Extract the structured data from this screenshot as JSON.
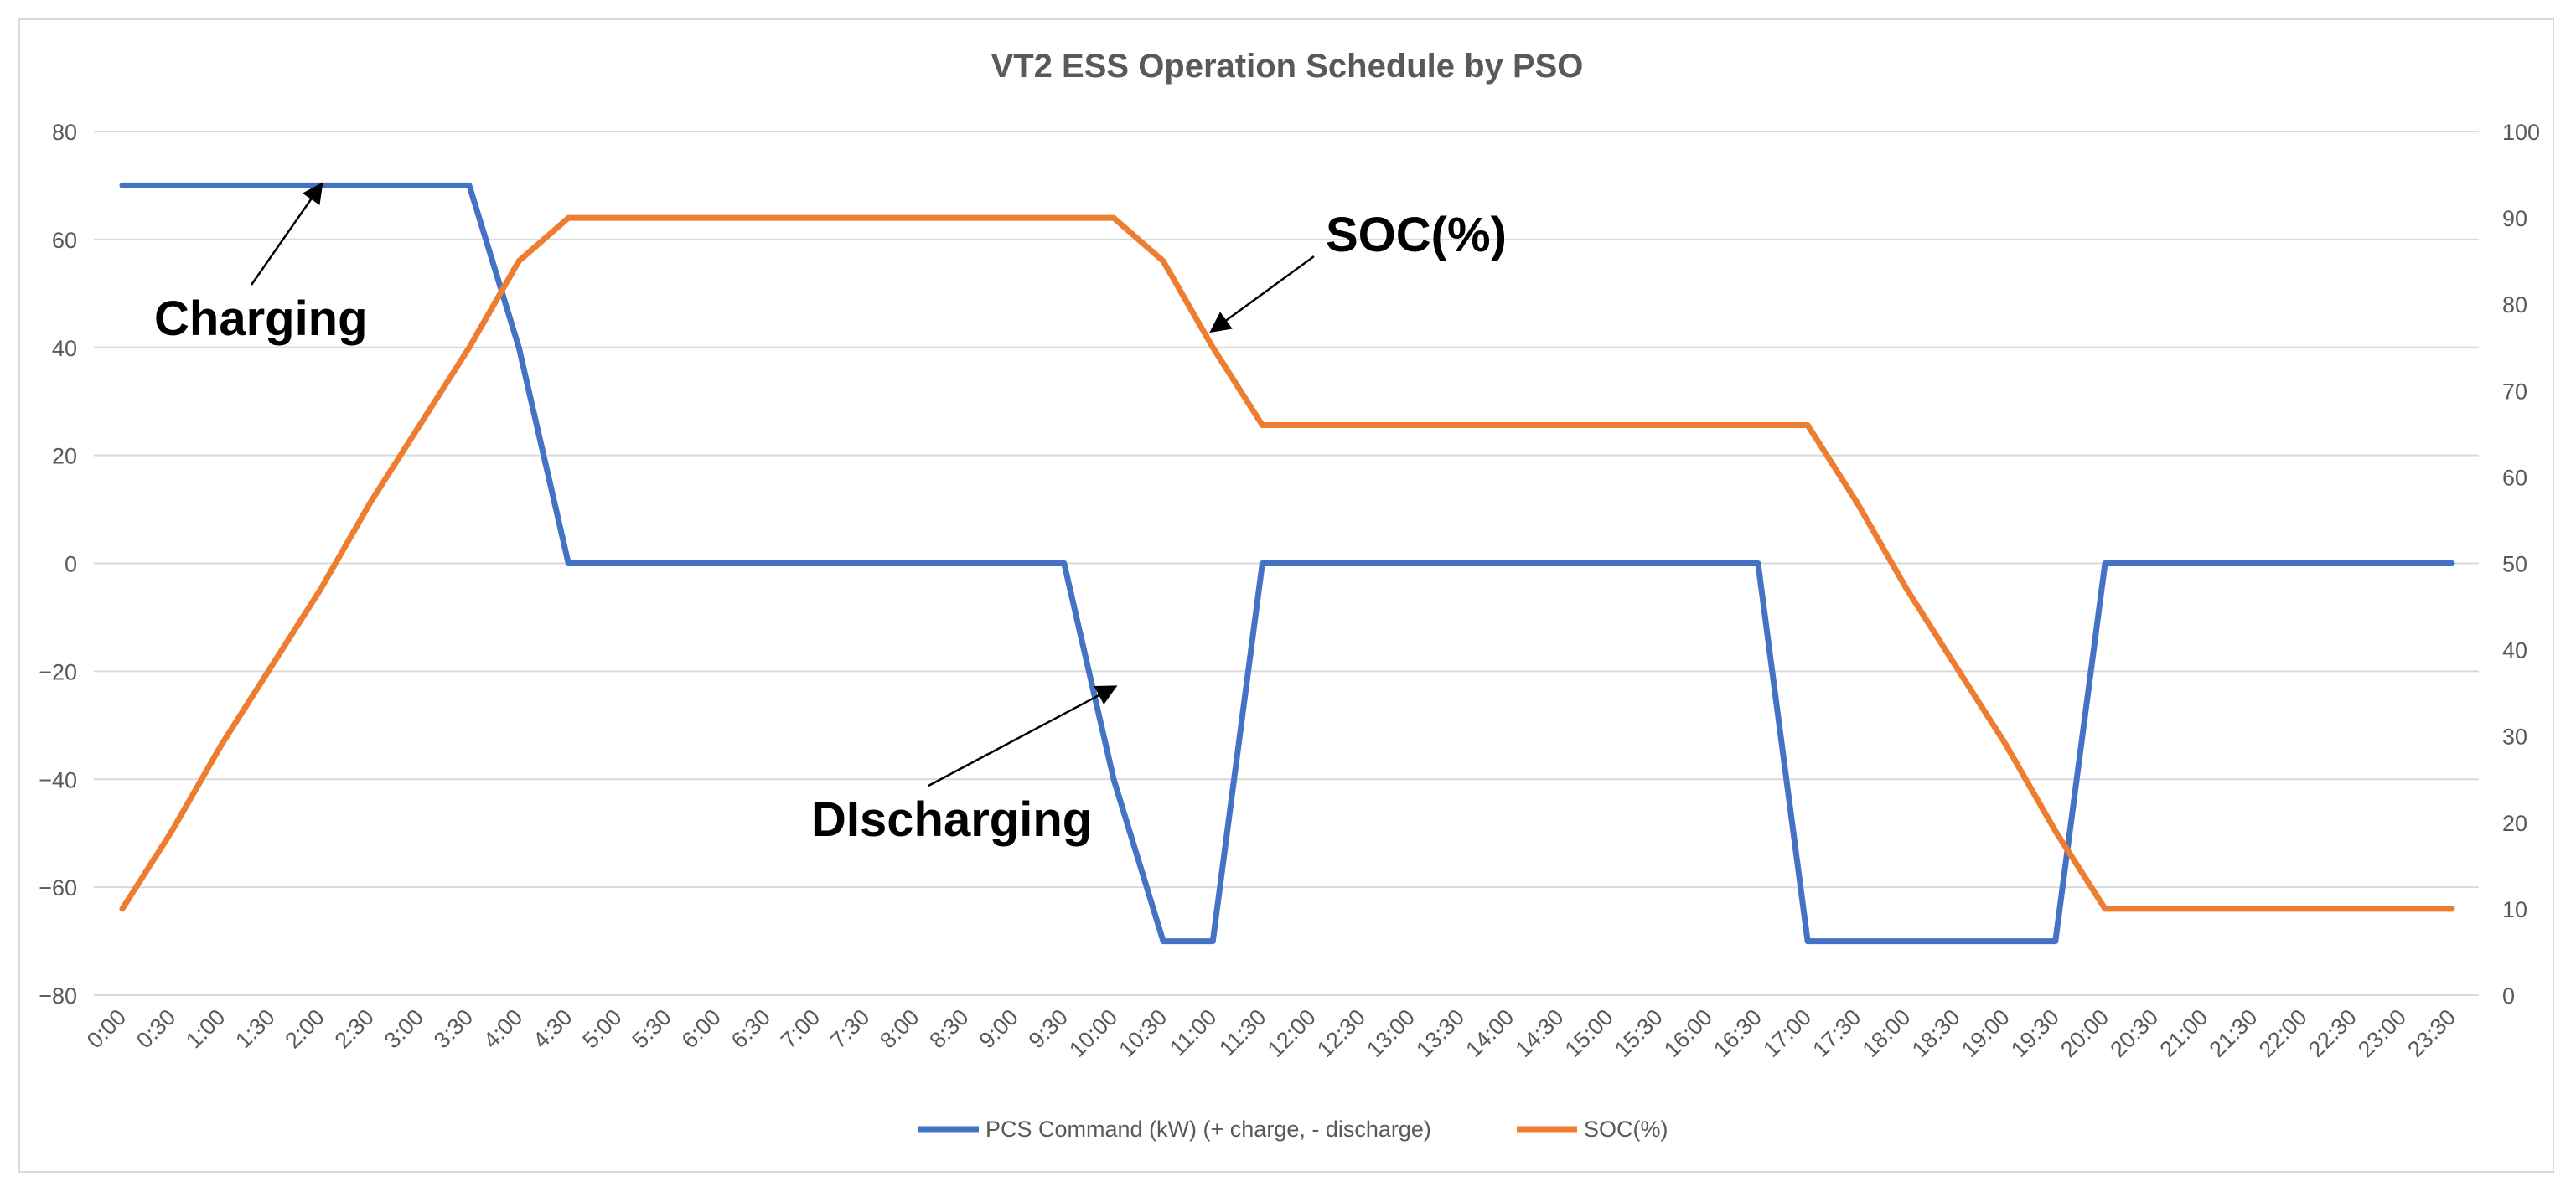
{
  "chart_data": {
    "type": "line",
    "title": "VT2 ESS Operation Schedule by PSO",
    "x": [
      "0:00",
      "0:30",
      "1:00",
      "1:30",
      "2:00",
      "2:30",
      "3:00",
      "3:30",
      "4:00",
      "4:30",
      "5:00",
      "5:30",
      "6:00",
      "6:30",
      "7:00",
      "7:30",
      "8:00",
      "8:30",
      "9:00",
      "9:30",
      "10:00",
      "10:30",
      "11:00",
      "11:30",
      "12:00",
      "12:30",
      "13:00",
      "13:30",
      "14:00",
      "14:30",
      "15:00",
      "15:30",
      "16:00",
      "16:30",
      "17:00",
      "17:30",
      "18:00",
      "18:30",
      "19:00",
      "19:30",
      "20:00",
      "20:30",
      "21:00",
      "21:30",
      "22:00",
      "22:30",
      "23:00",
      "23:30"
    ],
    "y_left": {
      "min": -80,
      "max": 80,
      "step": 20,
      "ticks": [
        "80",
        "60",
        "40",
        "20",
        "0",
        "−20",
        "−40",
        "−60",
        "−80"
      ]
    },
    "y_right": {
      "min": 0,
      "max": 100,
      "step": 10,
      "ticks": [
        "100",
        "90",
        "80",
        "70",
        "60",
        "50",
        "40",
        "30",
        "20",
        "10",
        "0"
      ]
    },
    "grid": true,
    "legend_position": "bottom",
    "series": [
      {
        "name": "PCS Command (kW) (+ charge, - discharge)",
        "axis": "left",
        "color": "#4472C4",
        "values": [
          70,
          70,
          70,
          70,
          70,
          70,
          70,
          70,
          40,
          0,
          0,
          0,
          0,
          0,
          0,
          0,
          0,
          0,
          0,
          0,
          -40,
          -70,
          -70,
          0,
          0,
          0,
          0,
          0,
          0,
          0,
          0,
          0,
          0,
          0,
          -70,
          -70,
          -70,
          -70,
          -70,
          -70,
          0,
          0,
          0,
          0,
          0,
          0,
          0,
          0
        ]
      },
      {
        "name": "SOC(%)",
        "axis": "right",
        "color": "#ED7D31",
        "values": [
          10,
          19,
          29,
          38,
          47,
          57,
          66,
          75,
          85,
          90,
          90,
          90,
          90,
          90,
          90,
          90,
          90,
          90,
          90,
          90,
          90,
          85,
          75,
          66,
          66,
          66,
          66,
          66,
          66,
          66,
          66,
          66,
          66,
          66,
          66,
          57,
          47,
          38,
          29,
          19,
          10,
          10,
          10,
          10,
          10,
          10,
          10,
          10
        ]
      }
    ],
    "annotations": [
      {
        "text": "Charging",
        "x": "2:00",
        "y": 70,
        "axis": "left"
      },
      {
        "text": "SOC(%)",
        "x": "11:00",
        "y": 77,
        "axis": "right"
      },
      {
        "text": "DIscharging",
        "x": "10:00",
        "y": -23,
        "axis": "left"
      }
    ]
  }
}
